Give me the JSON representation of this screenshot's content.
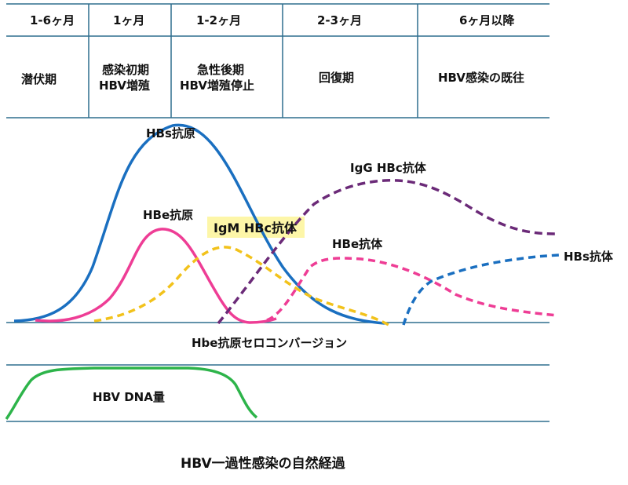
{
  "phases": [
    {
      "period": "1-6ヶ月",
      "stage": [
        "潜伏期"
      ]
    },
    {
      "period": "1ヶ月",
      "stage": [
        "感染初期",
        "HBV増殖"
      ]
    },
    {
      "period": "1-2ヶ月",
      "stage": [
        "急性後期",
        "HBV増殖停止"
      ]
    },
    {
      "period": "2-3ヶ月",
      "stage": [
        "回復期"
      ]
    },
    {
      "period": "6ヶ月以降",
      "stage": [
        "HBV感染の既往"
      ]
    }
  ],
  "curves": {
    "hbs_antigen": {
      "label": "HBs抗原",
      "color": "#1a6fc0"
    },
    "hbe_antigen": {
      "label": "HBe抗原",
      "color": "#ee3d95"
    },
    "igm_hbc": {
      "label": "IgM HBc抗体",
      "color": "#f2c21b",
      "highlight": "#fdf6a8"
    },
    "igg_hbc": {
      "label": "IgG HBc抗体",
      "color": "#6b2a78"
    },
    "hbe_antibody": {
      "label": "HBe抗体",
      "color": "#ee3d95"
    },
    "hbs_antibody": {
      "label": "HBs抗体",
      "color": "#1a6fc0"
    },
    "hbv_dna": {
      "label": "HBV DNA量",
      "color": "#2db44a"
    }
  },
  "seroconversion_label": "Hbe抗原セロコンバージョン",
  "figure_title": "HBV一過性感染の自然経過",
  "line_color": "#2e6e8e"
}
